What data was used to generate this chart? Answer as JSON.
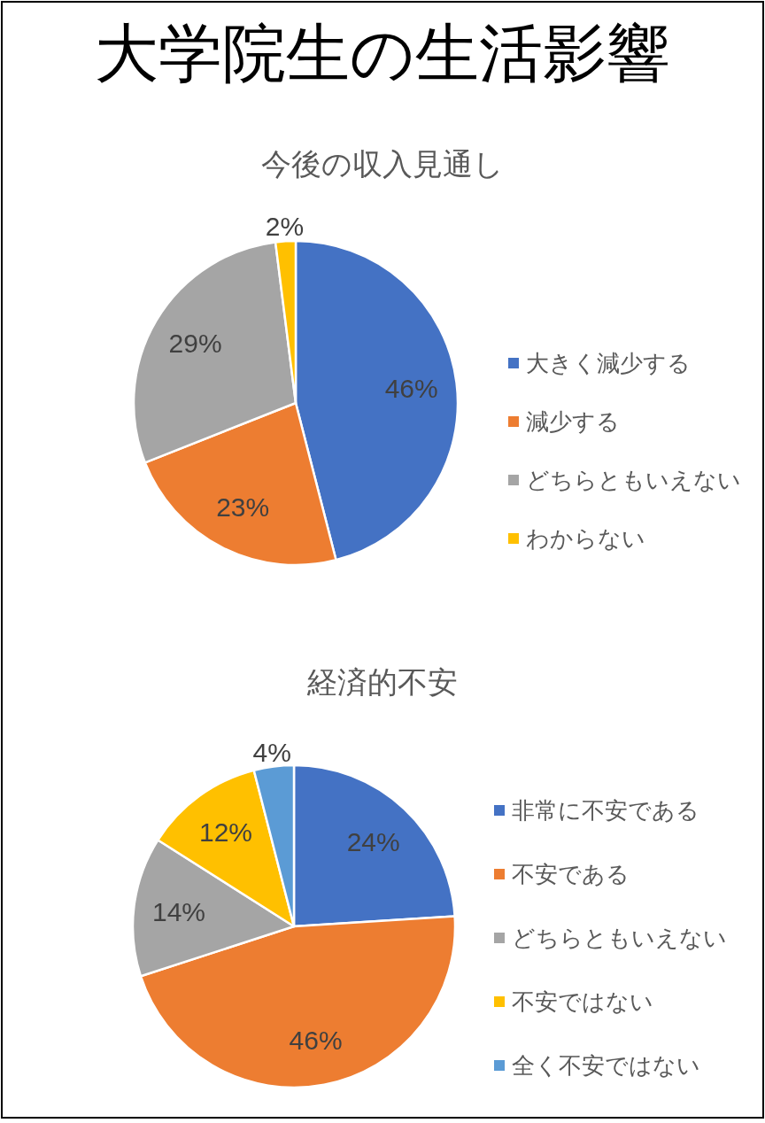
{
  "chart_data": [
    {
      "type": "pie",
      "title": "大学院生の生活影響",
      "subtitle": "今後の収入見通し",
      "categories": [
        "大きく減少する",
        "減少する",
        "どちらともいえない",
        "わからない"
      ],
      "values": [
        46,
        23,
        29,
        2
      ],
      "colors": [
        "#4472c4",
        "#ed7d31",
        "#a5a5a5",
        "#ffc000"
      ],
      "value_labels": [
        "46%",
        "23%",
        "29%",
        "2%"
      ],
      "legend": "right"
    },
    {
      "type": "pie",
      "title": "経済的不安",
      "categories": [
        "非常に不安である",
        "不安である",
        "どちらともいえない",
        "不安ではない",
        "全く不安ではない"
      ],
      "values": [
        24,
        46,
        14,
        12,
        4
      ],
      "colors": [
        "#4472c4",
        "#ed7d31",
        "#a5a5a5",
        "#ffc000",
        "#5b9bd5"
      ],
      "value_labels": [
        "24%",
        "46%",
        "14%",
        "12%",
        "4%"
      ],
      "legend": "right"
    }
  ]
}
